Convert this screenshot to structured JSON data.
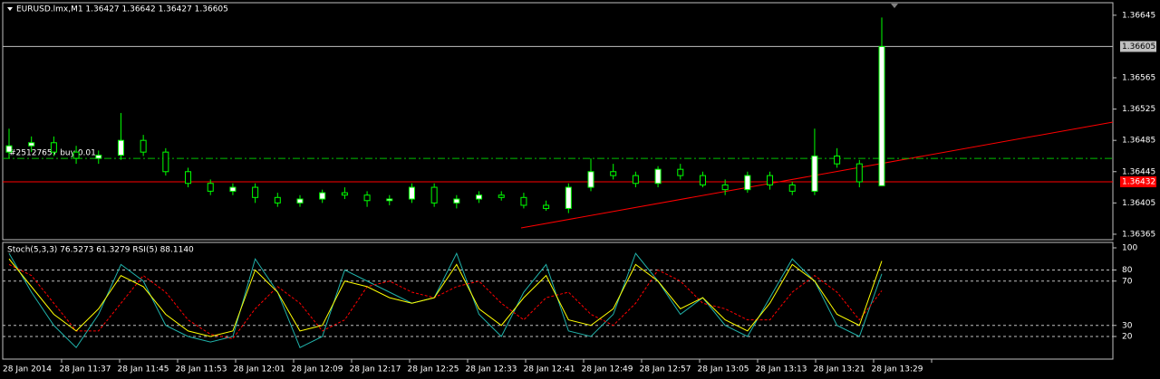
{
  "chart_data": [
    {
      "type": "candlestick",
      "title": "EURUSD.lmx,M1  1.36427 1.36642 1.36427 1.36605",
      "open": [
        1.3647,
        1.36478,
        1.36482,
        1.3647,
        1.36462,
        1.36466,
        1.36485,
        1.3647,
        1.36445,
        1.3643,
        1.3642,
        1.36425,
        1.36412,
        1.36405,
        1.3641,
        1.36418,
        1.36415,
        1.36408,
        1.3641,
        1.36425,
        1.36405,
        1.3641,
        1.36415,
        1.36412,
        1.36402,
        1.36398,
        1.36425,
        1.36445,
        1.3644,
        1.3643,
        1.36448,
        1.3644,
        1.36428,
        1.36422,
        1.3644,
        1.36428,
        1.3642,
        1.36465,
        1.36455,
        1.36427
      ],
      "high": [
        1.365,
        1.3649,
        1.3649,
        1.36478,
        1.36472,
        1.3652,
        1.36492,
        1.36475,
        1.3645,
        1.36435,
        1.3643,
        1.3643,
        1.36418,
        1.36415,
        1.36422,
        1.36425,
        1.3642,
        1.36415,
        1.3643,
        1.3643,
        1.36415,
        1.3642,
        1.3642,
        1.36418,
        1.36408,
        1.3643,
        1.36462,
        1.36455,
        1.36445,
        1.36452,
        1.36455,
        1.36445,
        1.36435,
        1.36445,
        1.36445,
        1.36432,
        1.365,
        1.36475,
        1.3646,
        1.36642
      ],
      "low": [
        1.36462,
        1.3647,
        1.36465,
        1.36455,
        1.36455,
        1.3646,
        1.36465,
        1.3644,
        1.36425,
        1.36415,
        1.36415,
        1.36405,
        1.364,
        1.364,
        1.36405,
        1.3641,
        1.364,
        1.36402,
        1.36405,
        1.364,
        1.36398,
        1.36405,
        1.36408,
        1.36398,
        1.36395,
        1.36392,
        1.3642,
        1.36435,
        1.36425,
        1.36425,
        1.36435,
        1.36425,
        1.36415,
        1.36418,
        1.36422,
        1.36415,
        1.36415,
        1.3645,
        1.36425,
        1.36427
      ],
      "close": [
        1.36478,
        1.36482,
        1.3647,
        1.36462,
        1.36466,
        1.36485,
        1.3647,
        1.36445,
        1.3643,
        1.3642,
        1.36425,
        1.36412,
        1.36405,
        1.3641,
        1.36418,
        1.36415,
        1.36408,
        1.3641,
        1.36425,
        1.36405,
        1.3641,
        1.36415,
        1.36412,
        1.36402,
        1.36398,
        1.36425,
        1.36445,
        1.3644,
        1.3643,
        1.36448,
        1.3644,
        1.36428,
        1.36422,
        1.3644,
        1.36428,
        1.3642,
        1.36465,
        1.36455,
        1.36432,
        1.36605
      ],
      "up_color": "#ffffff",
      "down_color": "#000000",
      "wick_color": "#00ff00",
      "ylim": [
        1.36358,
        1.36661
      ],
      "yticks": [
        1.36645,
        1.36565,
        1.36525,
        1.36485,
        1.36445,
        1.36405,
        1.36365
      ],
      "price_levels": [
        {
          "value": 1.36605,
          "color": "#c0c0c0"
        },
        {
          "value": 1.36432,
          "color": "#ff0000"
        }
      ],
      "order_line": {
        "label": "#25127657 buy 0.01",
        "value": 1.36462,
        "color": "#00c000"
      }
    },
    {
      "type": "line",
      "title": "Stoch(5,3,3) 76.5273 61.3279 RSI(5) 88.1140",
      "series": [
        {
          "name": "Stoch main",
          "color": "#20b2aa",
          "values": [
            95,
            60,
            30,
            10,
            40,
            85,
            70,
            30,
            20,
            15,
            20,
            90,
            60,
            10,
            20,
            80,
            70,
            60,
            50,
            55,
            95,
            40,
            20,
            60,
            85,
            25,
            20,
            40,
            95,
            70,
            40,
            55,
            30,
            20,
            55,
            90,
            70,
            30,
            20,
            76.5273
          ]
        },
        {
          "name": "Stoch signal",
          "color": "#ff0000",
          "values": [
            85,
            75,
            50,
            25,
            25,
            50,
            75,
            60,
            35,
            22,
            18,
            45,
            65,
            50,
            25,
            35,
            65,
            70,
            60,
            55,
            65,
            70,
            50,
            35,
            55,
            60,
            40,
            30,
            50,
            80,
            70,
            50,
            45,
            35,
            35,
            60,
            75,
            60,
            35,
            61.3279
          ]
        },
        {
          "name": "RSI",
          "color": "#ffff00",
          "values": [
            90,
            65,
            40,
            25,
            45,
            75,
            65,
            40,
            25,
            20,
            25,
            80,
            60,
            25,
            30,
            70,
            65,
            55,
            50,
            55,
            85,
            45,
            30,
            55,
            75,
            35,
            30,
            45,
            85,
            70,
            45,
            55,
            35,
            25,
            50,
            85,
            70,
            40,
            30,
            88.114
          ]
        }
      ],
      "ylim": [
        0,
        100
      ],
      "yticks": [
        100,
        80,
        70,
        30,
        20
      ],
      "levels": [
        80,
        70,
        30,
        20
      ],
      "x_labels": [
        "28 Jan 2014",
        "28 Jan 11:37",
        "28 Jan 11:45",
        "28 Jan 11:53",
        "28 Jan 12:01",
        "28 Jan 12:09",
        "28 Jan 12:17",
        "28 Jan 12:25",
        "28 Jan 12:33",
        "28 Jan 12:41",
        "28 Jan 12:49",
        "28 Jan 12:57",
        "28 Jan 13:05",
        "28 Jan 13:13",
        "28 Jan 13:21",
        "28 Jan 13:29"
      ]
    }
  ]
}
